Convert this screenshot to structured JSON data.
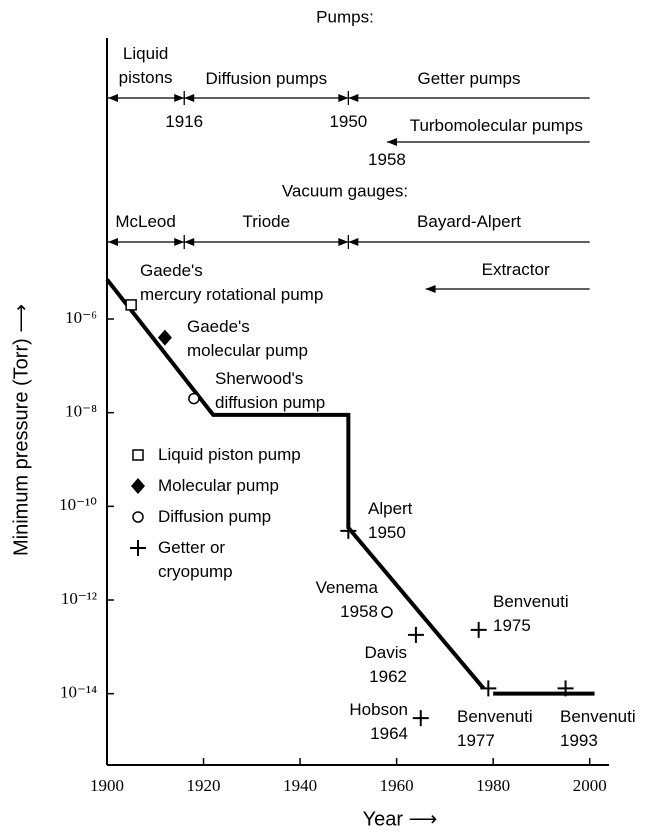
{
  "chart_data": {
    "type": "line",
    "xlabel": "Year ⟶",
    "ylabel": "Minimum pressure (Torr) ⟶",
    "xlim": [
      1900,
      2004
    ],
    "ylim": [
      3e-16,
      1
    ],
    "log_y": true,
    "color": "#000000",
    "xticks": [
      1900,
      1920,
      1940,
      1960,
      1980,
      2000
    ],
    "yticks": [
      {
        "value": 1e-06,
        "label": "10⁻⁶"
      },
      {
        "value": 1e-08,
        "label": "10⁻⁸"
      },
      {
        "value": 1e-10,
        "label": "10⁻¹⁰"
      },
      {
        "value": 1e-12,
        "label": "10⁻¹²"
      },
      {
        "value": 1e-14,
        "label": "10⁻¹⁴"
      }
    ],
    "series": [
      {
        "x": [
          1900,
          1922,
          1950,
          1950,
          1978
        ],
        "values": [
          7e-06,
          9e-09,
          9e-09,
          3.5e-11,
          1.3e-14
        ]
      },
      {
        "x": [
          1980,
          2001
        ],
        "values": [
          1e-14,
          1e-14
        ]
      }
    ],
    "points": [
      {
        "name": "Liquid piston pump",
        "marker": "square",
        "x": [
          1905
        ],
        "values": [
          2e-06
        ]
      },
      {
        "name": "Molecular pump",
        "marker": "diamond",
        "x": [
          1912
        ],
        "values": [
          4e-07
        ]
      },
      {
        "name": "Diffusion pump",
        "marker": "circle",
        "x": [
          1918,
          1958
        ],
        "values": [
          2e-08,
          5.5e-13
        ]
      },
      {
        "name": "Getter or\ncryopump",
        "marker": "plus",
        "x": [
          1950,
          1964,
          1965,
          1977,
          1979,
          1995
        ],
        "values": [
          3e-11,
          1.8e-13,
          3e-15,
          2.3e-13,
          1.3e-14,
          1.3e-14
        ]
      }
    ],
    "annotations": [
      {
        "text": "Gaede's\nmercury rotational pump"
      },
      {
        "text": "Gaede's\nmolecular pump"
      },
      {
        "text": "Sherwood's\ndiffusion pump"
      },
      {
        "text": "Alpert\n1950"
      },
      {
        "text": "Venema\n1958"
      },
      {
        "text": "Davis\n1962"
      },
      {
        "text": "Hobson\n1964"
      },
      {
        "text": "Benvenuti\n1975"
      },
      {
        "text": "Benvenuti\n1977"
      },
      {
        "text": "Benvenuti\n1993"
      }
    ],
    "timelines": [
      {
        "title": "Pumps:",
        "items": [
          {
            "label": "Liquid\npistons",
            "start": 1900,
            "end": 1916
          },
          {
            "label": "Diffusion pumps",
            "start": 1916,
            "end": 1950
          },
          {
            "label": "Getter pumps",
            "start": 1950,
            "end": 2000
          },
          {
            "label": "Turbomolecular pumps",
            "start": 1958,
            "end": 2000
          }
        ]
      },
      {
        "title": "Vacuum gauges:",
        "items": [
          {
            "label": "McLeod",
            "start": 1900,
            "end": 1916
          },
          {
            "label": "Triode",
            "start": 1916,
            "end": 1950
          },
          {
            "label": "Bayard-Alpert",
            "start": 1950,
            "end": 2000
          },
          {
            "label": "Extractor",
            "start": 1966,
            "end": 2000
          }
        ]
      }
    ]
  }
}
